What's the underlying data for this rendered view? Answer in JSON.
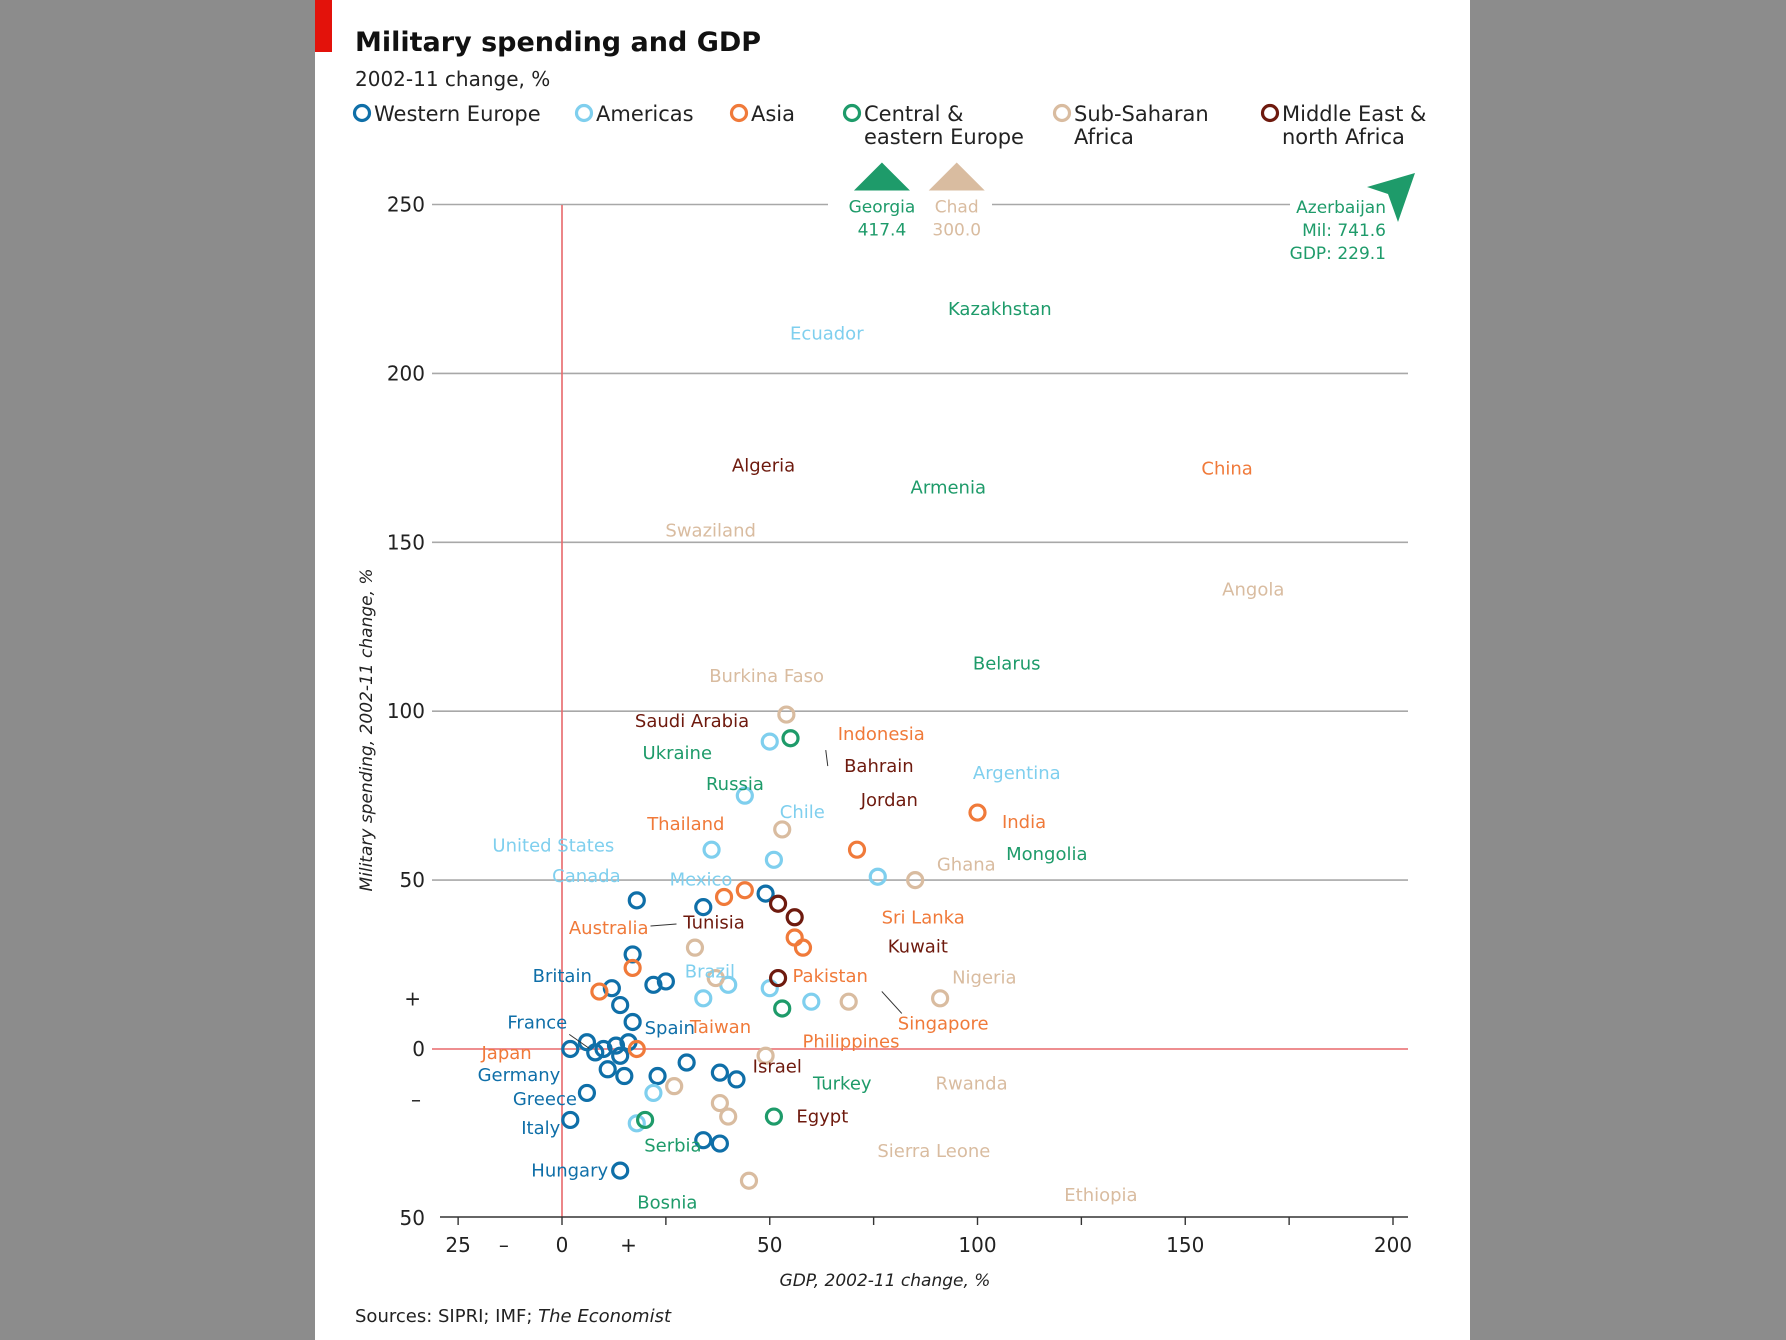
{
  "title": "Military spending and GDP",
  "subtitle": "2002-11 change, %",
  "source_prefix": "Sources: SIPRI; IMF; ",
  "source_italic": "The Economist",
  "colors": {
    "western_europe": "#0f6fa8",
    "americas": "#7fcfee",
    "asia": "#f07a3a",
    "central_eastern_europe": "#1e9b6a",
    "sub_saharan_africa": "#d9bca0",
    "middle_east_north_africa": "#6e1a0e",
    "zero_line": "#e8686b",
    "grid": "#a8a8a8"
  },
  "legend": [
    {
      "key": "western_europe",
      "lines": [
        "Western Europe"
      ]
    },
    {
      "key": "americas",
      "lines": [
        "Americas"
      ]
    },
    {
      "key": "asia",
      "lines": [
        "Asia"
      ]
    },
    {
      "key": "central_eastern_europe",
      "lines": [
        "Central &",
        "eastern Europe"
      ]
    },
    {
      "key": "sub_saharan_africa",
      "lines": [
        "Sub-Saharan",
        "Africa"
      ]
    },
    {
      "key": "middle_east_north_africa",
      "lines": [
        "Middle East &",
        "north Africa"
      ]
    }
  ],
  "offscale": [
    {
      "name": "Georgia",
      "value": "417.4",
      "group": "central_eastern_europe",
      "x": 77,
      "shape": "up"
    },
    {
      "name": "Chad",
      "value": "300.0",
      "group": "sub_saharan_africa",
      "x": 95,
      "shape": "up"
    },
    {
      "name": "Azerbaijan",
      "lines": [
        "Azerbaijan",
        "Mil: 741.6",
        "GDP: 229.1"
      ],
      "group": "central_eastern_europe",
      "shape": "diag"
    }
  ],
  "chart_data": {
    "type": "scatter",
    "title": "Military spending and GDP",
    "subtitle": "2002-11 change, %",
    "xlabel": "GDP, 2002-11 change, %",
    "ylabel": "Military spending, 2002-11 change, %",
    "xlim": [
      -25,
      200
    ],
    "ylim": [
      -50,
      250
    ],
    "x_ticks": [
      -25,
      0,
      50,
      100,
      150,
      200
    ],
    "x_tick_labels": [
      "25",
      "0",
      "50",
      "100",
      "150",
      "200"
    ],
    "y_ticks": [
      -50,
      0,
      50,
      100,
      150,
      200,
      250
    ],
    "y_tick_labels": [
      "50",
      "0",
      "50",
      "100",
      "150",
      "200",
      "250"
    ],
    "x_sign_markers": {
      "minus": "–",
      "plus": "+"
    },
    "y_sign_markers": {
      "minus": "–",
      "plus": "+"
    },
    "grid": true,
    "series": [
      {
        "name": "Western Europe",
        "group": "western_europe",
        "points": [
          {
            "x": 2,
            "y": 0
          },
          {
            "x": 6,
            "y": 2
          },
          {
            "x": 8,
            "y": -1
          },
          {
            "x": 11,
            "y": -6
          },
          {
            "x": 13,
            "y": 1
          },
          {
            "x": 14,
            "y": -2
          },
          {
            "x": 15,
            "y": -8
          },
          {
            "x": 16,
            "y": 2
          },
          {
            "x": 10,
            "y": 0
          },
          {
            "x": 12,
            "y": 18
          },
          {
            "x": 14,
            "y": 13
          },
          {
            "x": 17,
            "y": 8
          },
          {
            "x": 17,
            "y": 28
          },
          {
            "x": 18,
            "y": 44
          },
          {
            "x": 22,
            "y": 19
          },
          {
            "x": 25,
            "y": 20
          },
          {
            "x": 23,
            "y": -8
          },
          {
            "x": 30,
            "y": -4
          },
          {
            "x": 34,
            "y": 42
          },
          {
            "x": 38,
            "y": -7
          },
          {
            "x": 42,
            "y": -9
          },
          {
            "x": 49,
            "y": 46
          },
          {
            "x": 34,
            "y": -27
          },
          {
            "x": 38,
            "y": -28
          },
          {
            "x": 2,
            "y": -21
          },
          {
            "x": 6,
            "y": -13
          },
          {
            "x": 14,
            "y": -36
          },
          {
            "x": 2,
            "y": 0,
            "label": "Germany"
          },
          {
            "x": 6,
            "y": -13,
            "label": "Greece"
          },
          {
            "x": 2,
            "y": -21,
            "label": "Italy"
          },
          {
            "x": 14,
            "y": -36,
            "label": "Hungary"
          },
          {
            "x": 12,
            "y": 18,
            "label": "Britain"
          },
          {
            "x": 17,
            "y": 8,
            "label": "Spain"
          },
          {
            "x": 8,
            "y": -1,
            "label": "France"
          }
        ]
      },
      {
        "name": "Americas",
        "group": "americas",
        "points": [
          {
            "x": 52,
            "y": 210,
            "label": "Ecuador"
          },
          {
            "x": 96,
            "y": 80,
            "label": "Argentina"
          },
          {
            "x": 50,
            "y": 72,
            "label": "Chile"
          },
          {
            "x": 15,
            "y": 59,
            "label": "United States"
          },
          {
            "x": 17,
            "y": 53,
            "label": "Canada"
          },
          {
            "x": 23,
            "y": 52,
            "label": "Mexico"
          },
          {
            "x": 45,
            "y": 23,
            "label": "Brazil"
          },
          {
            "x": 50,
            "y": 91
          },
          {
            "x": 44,
            "y": 75
          },
          {
            "x": 36,
            "y": 59
          },
          {
            "x": 51,
            "y": 56
          },
          {
            "x": 76,
            "y": 51
          },
          {
            "x": 40,
            "y": 19
          },
          {
            "x": 50,
            "y": 18
          },
          {
            "x": 34,
            "y": 15
          },
          {
            "x": 60,
            "y": 14
          },
          {
            "x": 22,
            "y": -13
          },
          {
            "x": 18,
            "y": -22
          }
        ]
      },
      {
        "name": "Asia",
        "group": "asia",
        "points": [
          {
            "x": 151,
            "y": 170,
            "label": "China"
          },
          {
            "x": 63,
            "y": 82,
            "label": "Indonesia"
          },
          {
            "x": 42,
            "y": 66,
            "label": "Thailand"
          },
          {
            "x": 103,
            "y": 66,
            "label": "India"
          },
          {
            "x": 29,
            "y": 37,
            "label": "Australia"
          },
          {
            "x": 75,
            "y": 33,
            "label": "Sri Lanka"
          },
          {
            "x": 55,
            "y": 18,
            "label": "Pakistan"
          },
          {
            "x": 46,
            "y": 13,
            "label": "Taiwan"
          },
          {
            "x": 55,
            "y": 7,
            "label": "Philippines"
          },
          {
            "x": 76,
            "y": 20,
            "label": "Singapore"
          },
          {
            "x": -2,
            "y": -3,
            "label": "Japan"
          },
          {
            "x": 100,
            "y": 70
          },
          {
            "x": 71,
            "y": 59
          },
          {
            "x": 39,
            "y": 45
          },
          {
            "x": 44,
            "y": 47
          },
          {
            "x": 56,
            "y": 33
          },
          {
            "x": 58,
            "y": 30
          },
          {
            "x": 17,
            "y": 24
          },
          {
            "x": 9,
            "y": 17
          },
          {
            "x": 18,
            "y": 0
          }
        ]
      },
      {
        "name": "Central & eastern Europe",
        "group": "central_eastern_europe",
        "points": [
          {
            "x": 90,
            "y": 225,
            "label": "Kazakhstan"
          },
          {
            "x": 81,
            "y": 165,
            "label": "Armenia"
          },
          {
            "x": 96,
            "y": 113,
            "label": "Belarus"
          },
          {
            "x": 39,
            "y": 87,
            "label": "Ukraine"
          },
          {
            "x": 51,
            "y": 79,
            "label": "Russia"
          },
          {
            "x": 104,
            "y": 56,
            "label": "Mongolia"
          },
          {
            "x": 58,
            "y": -12,
            "label": "Turkey"
          },
          {
            "x": 36,
            "y": -31,
            "label": "Serbia"
          },
          {
            "x": 35,
            "y": -46,
            "label": "Bosnia"
          },
          {
            "x": 55,
            "y": 92
          },
          {
            "x": 53,
            "y": 12
          },
          {
            "x": 51,
            "y": -20
          },
          {
            "x": 20,
            "y": -21
          }
        ]
      },
      {
        "name": "Sub-Saharan Africa",
        "group": "sub_saharan_africa",
        "points": [
          {
            "x": 22,
            "y": 160,
            "label": "Swaziland"
          },
          {
            "x": 156,
            "y": 142,
            "label": "Angola"
          },
          {
            "x": 65,
            "y": 108,
            "label": "Burkina Faso"
          },
          {
            "x": 83,
            "y": 51,
            "label": "Ghana"
          },
          {
            "x": 91,
            "y": 23,
            "label": "Nigeria"
          },
          {
            "x": 87,
            "y": -12,
            "label": "Rwanda"
          },
          {
            "x": 73,
            "y": -32,
            "label": "Sierra Leone"
          },
          {
            "x": 118,
            "y": -45,
            "label": "Ethiopia"
          },
          {
            "x": 54,
            "y": 99
          },
          {
            "x": 53,
            "y": 65
          },
          {
            "x": 85,
            "y": 50
          },
          {
            "x": 32,
            "y": 30
          },
          {
            "x": 37,
            "y": 21
          },
          {
            "x": 69,
            "y": 14
          },
          {
            "x": 91,
            "y": 15
          },
          {
            "x": 49,
            "y": -2
          },
          {
            "x": 27,
            "y": -11
          },
          {
            "x": 38,
            "y": -16
          },
          {
            "x": 40,
            "y": -20
          },
          {
            "x": 45,
            "y": -39
          }
        ]
      },
      {
        "name": "Middle East & north Africa",
        "group": "middle_east_north_africa",
        "points": [
          {
            "x": 38,
            "y": 171,
            "label": "Algeria"
          },
          {
            "x": 46,
            "y": 90,
            "label": "Saudi Arabia"
          },
          {
            "x": 65,
            "y": 82,
            "label": "Bahrain"
          },
          {
            "x": 69,
            "y": 72,
            "label": "Jordan"
          },
          {
            "x": 44,
            "y": 28,
            "label": "Tunisia"
          },
          {
            "x": 76,
            "y": 25,
            "label": "Kuwait"
          },
          {
            "x": 43,
            "y": -4,
            "label": "Israel"
          },
          {
            "x": 54,
            "y": -14,
            "label": "Egypt"
          },
          {
            "x": 52,
            "y": 43
          },
          {
            "x": 56,
            "y": 39
          },
          {
            "x": 52,
            "y": 21
          }
        ]
      }
    ]
  }
}
